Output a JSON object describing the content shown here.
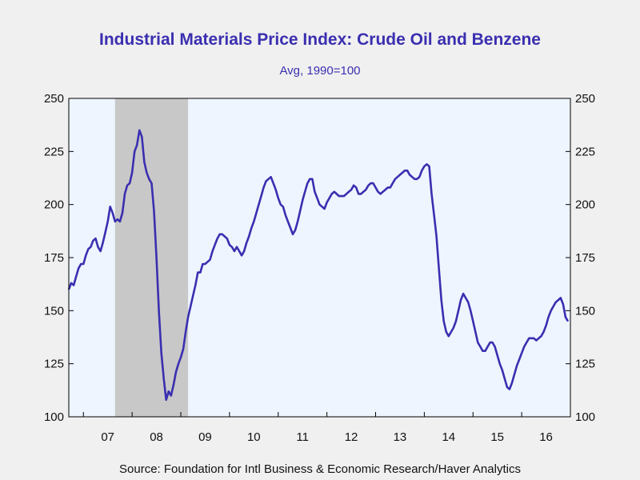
{
  "title": "Industrial Materials Price Index: Crude Oil and Benzene",
  "subtitle": "Avg, 1990=100",
  "source": "Source:  Foundation for Intl Business & Economic Research/Haver Analytics",
  "colors": {
    "line": "#3a2fb0",
    "plot_bg": "#eef5ff",
    "recession": "#c8c8c8",
    "page_bg": "#f0f0f0"
  },
  "chart_data": {
    "type": "line",
    "title": "Industrial Materials Price Index: Crude Oil and Benzene",
    "subtitle": "Avg, 1990=100",
    "xlim": [
      2006.7,
      2017.0
    ],
    "ylim": [
      100,
      250
    ],
    "yticks": [
      100,
      125,
      150,
      175,
      200,
      225,
      250
    ],
    "xtick_labels": [
      {
        "label": "07",
        "x": 2007.0
      },
      {
        "label": "08",
        "x": 2008.0
      },
      {
        "label": "09",
        "x": 2009.0
      },
      {
        "label": "10",
        "x": 2010.0
      },
      {
        "label": "11",
        "x": 2011.0
      },
      {
        "label": "12",
        "x": 2012.0
      },
      {
        "label": "13",
        "x": 2013.0
      },
      {
        "label": "14",
        "x": 2014.0
      },
      {
        "label": "15",
        "x": 2015.0
      },
      {
        "label": "16",
        "x": 2016.0
      }
    ],
    "shaded_period": [
      2007.65,
      2009.15
    ],
    "grid": false,
    "right_axis": true,
    "series": [
      {
        "x": [
          2006.7,
          2006.75,
          2006.8,
          2006.85,
          2006.9,
          2006.95,
          2007.0,
          2007.05,
          2007.1,
          2007.15,
          2007.2,
          2007.25,
          2007.3,
          2007.35,
          2007.4,
          2007.45,
          2007.5,
          2007.55,
          2007.6,
          2007.65,
          2007.7,
          2007.75,
          2007.8,
          2007.85,
          2007.9,
          2007.95,
          2008.0,
          2008.05,
          2008.1,
          2008.15,
          2008.2,
          2008.25,
          2008.3,
          2008.35,
          2008.4,
          2008.45,
          2008.5,
          2008.55,
          2008.6,
          2008.65,
          2008.7,
          2008.75,
          2008.8,
          2008.85,
          2008.9,
          2008.95,
          2009.0,
          2009.05,
          2009.1,
          2009.15,
          2009.2,
          2009.25,
          2009.3,
          2009.35,
          2009.4,
          2009.45,
          2009.5,
          2009.55,
          2009.6,
          2009.65,
          2009.7,
          2009.75,
          2009.8,
          2009.85,
          2009.9,
          2009.95,
          2010.0,
          2010.05,
          2010.1,
          2010.15,
          2010.2,
          2010.25,
          2010.3,
          2010.35,
          2010.4,
          2010.45,
          2010.5,
          2010.55,
          2010.6,
          2010.65,
          2010.7,
          2010.75,
          2010.8,
          2010.85,
          2010.9,
          2010.95,
          2011.0,
          2011.05,
          2011.1,
          2011.15,
          2011.2,
          2011.25,
          2011.3,
          2011.35,
          2011.4,
          2011.45,
          2011.5,
          2011.55,
          2011.6,
          2011.65,
          2011.7,
          2011.75,
          2011.8,
          2011.85,
          2011.9,
          2011.95,
          2012.0,
          2012.05,
          2012.1,
          2012.15,
          2012.2,
          2012.25,
          2012.3,
          2012.35,
          2012.4,
          2012.45,
          2012.5,
          2012.55,
          2012.6,
          2012.65,
          2012.7,
          2012.75,
          2012.8,
          2012.85,
          2012.9,
          2012.95,
          2013.0,
          2013.05,
          2013.1,
          2013.15,
          2013.2,
          2013.25,
          2013.3,
          2013.35,
          2013.4,
          2013.45,
          2013.5,
          2013.55,
          2013.6,
          2013.65,
          2013.7,
          2013.75,
          2013.8,
          2013.85,
          2013.9,
          2013.95,
          2014.0,
          2014.05,
          2014.1,
          2014.15,
          2014.2,
          2014.25,
          2014.3,
          2014.35,
          2014.4,
          2014.45,
          2014.5,
          2014.55,
          2014.6,
          2014.65,
          2014.7,
          2014.75,
          2014.8,
          2014.85,
          2014.9,
          2014.95,
          2015.0,
          2015.05,
          2015.1,
          2015.15,
          2015.2,
          2015.25,
          2015.3,
          2015.35,
          2015.4,
          2015.45,
          2015.5,
          2015.55,
          2015.6,
          2015.65,
          2015.7,
          2015.75,
          2015.8,
          2015.85,
          2015.9,
          2015.95,
          2016.0,
          2016.05,
          2016.1,
          2016.15,
          2016.2,
          2016.25,
          2016.3,
          2016.35,
          2016.4,
          2016.45,
          2016.5,
          2016.55,
          2016.6,
          2016.65,
          2016.7,
          2016.75,
          2016.8,
          2016.85,
          2016.9,
          2016.95
        ],
        "values": [
          160,
          163,
          162,
          166,
          170,
          172,
          172,
          176,
          179,
          180,
          183,
          184,
          180,
          178,
          182,
          187,
          192,
          199,
          196,
          192,
          193,
          192,
          196,
          205,
          209,
          210,
          215,
          225,
          228,
          235,
          232,
          220,
          215,
          212,
          210,
          197,
          175,
          150,
          130,
          118,
          108,
          112,
          110,
          115,
          121,
          125,
          128,
          132,
          140,
          147,
          152,
          157,
          162,
          168,
          168,
          172,
          172,
          173,
          174,
          178,
          181,
          184,
          186,
          186,
          185,
          184,
          181,
          180,
          178,
          180,
          178,
          176,
          178,
          182,
          185,
          189,
          192,
          196,
          200,
          204,
          208,
          211,
          212,
          213,
          210,
          207,
          203,
          200,
          199,
          195,
          192,
          189,
          186,
          188,
          192,
          197,
          202,
          206,
          210,
          212,
          212,
          206,
          203,
          200,
          199,
          198,
          201,
          203,
          205,
          206,
          205,
          204,
          204,
          204,
          205,
          206,
          207,
          209,
          208,
          205,
          205,
          206,
          207,
          209,
          210,
          210,
          208,
          206,
          205,
          206,
          207,
          208,
          208,
          210,
          212,
          213,
          214,
          215,
          216,
          216,
          214,
          213,
          212,
          212,
          213,
          216,
          218,
          219,
          218,
          205,
          195,
          185,
          170,
          155,
          145,
          140,
          138,
          140,
          142,
          145,
          150,
          155,
          158,
          156,
          154,
          150,
          145,
          140,
          135,
          133,
          131,
          131,
          133,
          135,
          135,
          133,
          129,
          125,
          122,
          118,
          114,
          113,
          116,
          120,
          124,
          127,
          130,
          133,
          135,
          137,
          137,
          137,
          136,
          137,
          138,
          140,
          143,
          147,
          150,
          152,
          154,
          155,
          156,
          153,
          147,
          145
        ]
      }
    ]
  }
}
